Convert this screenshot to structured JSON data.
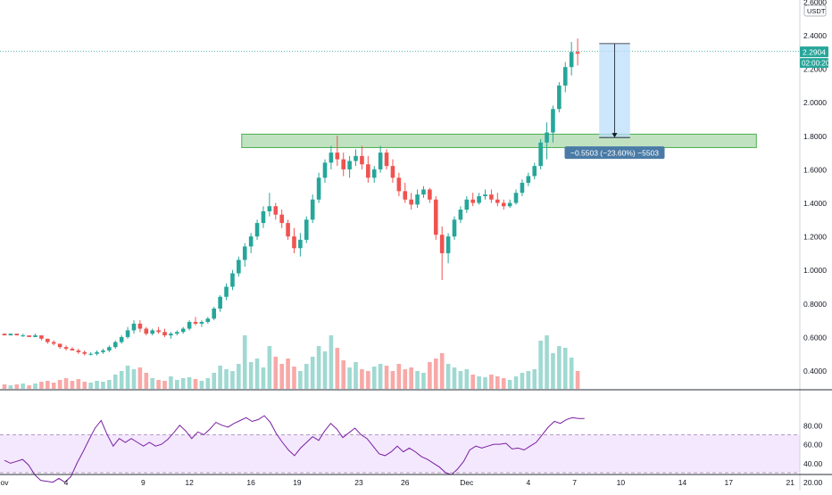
{
  "chart_data": {
    "type": "candlestick",
    "currency": "USDT",
    "x_tick_labels": [
      "ov",
      "4",
      "9",
      "12",
      "16",
      "19",
      "23",
      "26",
      "Dec",
      "4",
      "7",
      "10",
      "14",
      "17",
      "21"
    ],
    "x_tick_days": [
      0,
      4,
      9,
      12,
      16,
      19,
      23,
      26,
      30,
      34,
      37,
      40,
      44,
      47,
      51
    ],
    "price_axis": {
      "min": 0.3,
      "max": 2.6,
      "ticks": [
        "2.6000",
        "2.4000",
        "2.2000",
        "2.0000",
        "1.8000",
        "1.6000",
        "1.4000",
        "1.2000",
        "1.0000",
        "0.8000",
        "0.6000",
        "0.4000"
      ]
    },
    "current_price": "2.2904",
    "countdown": "02:00:20",
    "candles": [
      [
        0.0,
        0.62,
        0.62,
        0.61,
        0.61
      ],
      [
        0.4,
        0.61,
        0.62,
        0.61,
        0.62
      ],
      [
        0.8,
        0.62,
        0.62,
        0.61,
        0.61
      ],
      [
        1.2,
        0.61,
        0.62,
        0.6,
        0.61
      ],
      [
        1.6,
        0.61,
        0.61,
        0.6,
        0.6
      ],
      [
        2.0,
        0.6,
        0.62,
        0.6,
        0.61
      ],
      [
        2.4,
        0.61,
        0.61,
        0.58,
        0.59
      ],
      [
        2.8,
        0.59,
        0.59,
        0.56,
        0.57
      ],
      [
        3.2,
        0.57,
        0.58,
        0.55,
        0.56
      ],
      [
        3.6,
        0.56,
        0.56,
        0.53,
        0.54
      ],
      [
        4.0,
        0.54,
        0.55,
        0.52,
        0.53
      ],
      [
        4.4,
        0.53,
        0.54,
        0.52,
        0.52
      ],
      [
        4.8,
        0.52,
        0.53,
        0.5,
        0.51
      ],
      [
        5.2,
        0.51,
        0.52,
        0.49,
        0.5
      ],
      [
        5.6,
        0.5,
        0.51,
        0.49,
        0.5
      ],
      [
        6.0,
        0.5,
        0.52,
        0.49,
        0.51
      ],
      [
        6.4,
        0.51,
        0.53,
        0.5,
        0.52
      ],
      [
        6.8,
        0.52,
        0.55,
        0.51,
        0.54
      ],
      [
        7.2,
        0.54,
        0.58,
        0.53,
        0.57
      ],
      [
        7.6,
        0.57,
        0.61,
        0.56,
        0.6
      ],
      [
        8.0,
        0.6,
        0.66,
        0.59,
        0.64
      ],
      [
        8.4,
        0.64,
        0.7,
        0.62,
        0.68
      ],
      [
        8.8,
        0.68,
        0.7,
        0.63,
        0.65
      ],
      [
        9.2,
        0.65,
        0.66,
        0.61,
        0.62
      ],
      [
        9.6,
        0.62,
        0.65,
        0.61,
        0.64
      ],
      [
        10.0,
        0.64,
        0.66,
        0.62,
        0.63
      ],
      [
        10.4,
        0.63,
        0.65,
        0.6,
        0.61
      ],
      [
        10.8,
        0.61,
        0.63,
        0.59,
        0.62
      ],
      [
        11.2,
        0.62,
        0.64,
        0.61,
        0.63
      ],
      [
        11.6,
        0.63,
        0.66,
        0.62,
        0.65
      ],
      [
        12.0,
        0.65,
        0.7,
        0.64,
        0.69
      ],
      [
        12.4,
        0.69,
        0.72,
        0.67,
        0.68
      ],
      [
        12.8,
        0.68,
        0.7,
        0.66,
        0.69
      ],
      [
        13.2,
        0.69,
        0.72,
        0.68,
        0.71
      ],
      [
        13.6,
        0.71,
        0.78,
        0.7,
        0.77
      ],
      [
        14.0,
        0.77,
        0.85,
        0.75,
        0.84
      ],
      [
        14.4,
        0.84,
        0.92,
        0.82,
        0.9
      ],
      [
        14.8,
        0.9,
        1.0,
        0.88,
        0.98
      ],
      [
        15.2,
        0.98,
        1.08,
        0.96,
        1.06
      ],
      [
        15.6,
        1.06,
        1.16,
        1.02,
        1.14
      ],
      [
        16.0,
        1.14,
        1.22,
        1.1,
        1.2
      ],
      [
        16.4,
        1.2,
        1.3,
        1.18,
        1.28
      ],
      [
        16.8,
        1.28,
        1.38,
        1.25,
        1.35
      ],
      [
        17.2,
        1.35,
        1.46,
        1.32,
        1.38
      ],
      [
        17.6,
        1.38,
        1.4,
        1.3,
        1.33
      ],
      [
        18.0,
        1.33,
        1.36,
        1.25,
        1.28
      ],
      [
        18.4,
        1.28,
        1.3,
        1.18,
        1.2
      ],
      [
        18.8,
        1.2,
        1.25,
        1.1,
        1.13
      ],
      [
        19.2,
        1.13,
        1.22,
        1.08,
        1.18
      ],
      [
        19.6,
        1.18,
        1.32,
        1.16,
        1.3
      ],
      [
        20.0,
        1.3,
        1.45,
        1.28,
        1.42
      ],
      [
        20.4,
        1.42,
        1.58,
        1.4,
        1.55
      ],
      [
        20.8,
        1.55,
        1.66,
        1.52,
        1.64
      ],
      [
        21.2,
        1.64,
        1.74,
        1.6,
        1.7
      ],
      [
        21.6,
        1.7,
        1.8,
        1.62,
        1.66
      ],
      [
        22.0,
        1.66,
        1.7,
        1.56,
        1.6
      ],
      [
        22.4,
        1.6,
        1.68,
        1.55,
        1.65
      ],
      [
        22.8,
        1.65,
        1.72,
        1.62,
        1.68
      ],
      [
        23.2,
        1.68,
        1.74,
        1.6,
        1.63
      ],
      [
        23.6,
        1.63,
        1.68,
        1.52,
        1.55
      ],
      [
        24.0,
        1.55,
        1.62,
        1.52,
        1.6
      ],
      [
        24.4,
        1.6,
        1.74,
        1.58,
        1.7
      ],
      [
        24.8,
        1.7,
        1.72,
        1.6,
        1.62
      ],
      [
        25.2,
        1.62,
        1.66,
        1.52,
        1.55
      ],
      [
        25.6,
        1.55,
        1.58,
        1.44,
        1.47
      ],
      [
        26.0,
        1.47,
        1.52,
        1.4,
        1.42
      ],
      [
        26.4,
        1.42,
        1.46,
        1.36,
        1.39
      ],
      [
        26.8,
        1.39,
        1.48,
        1.37,
        1.45
      ],
      [
        27.2,
        1.45,
        1.5,
        1.43,
        1.48
      ],
      [
        27.6,
        1.48,
        1.49,
        1.4,
        1.42
      ],
      [
        28.0,
        1.42,
        1.44,
        1.18,
        1.21
      ],
      [
        28.4,
        1.21,
        1.26,
        0.94,
        1.1
      ],
      [
        28.8,
        1.1,
        1.22,
        1.04,
        1.2
      ],
      [
        29.2,
        1.2,
        1.32,
        1.18,
        1.3
      ],
      [
        29.6,
        1.3,
        1.38,
        1.28,
        1.36
      ],
      [
        30.0,
        1.36,
        1.44,
        1.34,
        1.42
      ],
      [
        30.4,
        1.42,
        1.46,
        1.38,
        1.4
      ],
      [
        30.8,
        1.4,
        1.46,
        1.39,
        1.44
      ],
      [
        31.2,
        1.44,
        1.48,
        1.42,
        1.45
      ],
      [
        31.6,
        1.45,
        1.48,
        1.4,
        1.42
      ],
      [
        32.0,
        1.42,
        1.46,
        1.38,
        1.4
      ],
      [
        32.4,
        1.4,
        1.42,
        1.36,
        1.38
      ],
      [
        32.8,
        1.38,
        1.42,
        1.37,
        1.4
      ],
      [
        33.2,
        1.4,
        1.48,
        1.39,
        1.46
      ],
      [
        33.6,
        1.46,
        1.54,
        1.44,
        1.52
      ],
      [
        34.0,
        1.52,
        1.58,
        1.5,
        1.56
      ],
      [
        34.4,
        1.56,
        1.64,
        1.54,
        1.62
      ],
      [
        34.8,
        1.62,
        1.78,
        1.6,
        1.76
      ],
      [
        35.2,
        1.76,
        1.88,
        1.66,
        1.82
      ],
      [
        35.6,
        1.82,
        1.98,
        1.76,
        1.96
      ],
      [
        36.0,
        1.96,
        2.12,
        1.94,
        2.1
      ],
      [
        36.4,
        2.1,
        2.24,
        2.06,
        2.21
      ],
      [
        36.8,
        2.21,
        2.36,
        2.16,
        2.3
      ],
      [
        37.2,
        2.3,
        2.38,
        2.22,
        2.29
      ]
    ],
    "volume": [
      [
        0.0,
        0.05
      ],
      [
        0.4,
        0.04
      ],
      [
        0.8,
        0.05
      ],
      [
        1.2,
        0.06
      ],
      [
        1.6,
        0.04
      ],
      [
        2.0,
        0.06
      ],
      [
        2.4,
        0.08
      ],
      [
        2.8,
        0.09
      ],
      [
        3.2,
        0.07
      ],
      [
        3.6,
        0.1
      ],
      [
        4.0,
        0.12
      ],
      [
        4.4,
        0.09
      ],
      [
        4.8,
        0.11
      ],
      [
        5.2,
        0.08
      ],
      [
        5.6,
        0.07
      ],
      [
        6.0,
        0.09
      ],
      [
        6.4,
        0.08
      ],
      [
        6.8,
        0.1
      ],
      [
        7.2,
        0.16
      ],
      [
        7.6,
        0.2
      ],
      [
        8.0,
        0.26
      ],
      [
        8.4,
        0.22
      ],
      [
        8.8,
        0.24
      ],
      [
        9.2,
        0.18
      ],
      [
        9.6,
        0.12
      ],
      [
        10.0,
        0.1
      ],
      [
        10.4,
        0.09
      ],
      [
        10.8,
        0.14
      ],
      [
        11.2,
        0.1
      ],
      [
        11.6,
        0.12
      ],
      [
        12.0,
        0.13
      ],
      [
        12.4,
        0.11
      ],
      [
        12.8,
        0.09
      ],
      [
        13.2,
        0.12
      ],
      [
        13.6,
        0.18
      ],
      [
        14.0,
        0.26
      ],
      [
        14.4,
        0.22
      ],
      [
        14.8,
        0.2
      ],
      [
        15.2,
        0.28
      ],
      [
        15.6,
        0.6
      ],
      [
        16.0,
        0.3
      ],
      [
        16.4,
        0.34
      ],
      [
        16.8,
        0.24
      ],
      [
        17.2,
        0.48
      ],
      [
        17.6,
        0.36
      ],
      [
        18.0,
        0.28
      ],
      [
        18.4,
        0.34
      ],
      [
        18.8,
        0.25
      ],
      [
        19.2,
        0.2
      ],
      [
        19.6,
        0.28
      ],
      [
        20.0,
        0.36
      ],
      [
        20.4,
        0.48
      ],
      [
        20.8,
        0.42
      ],
      [
        21.2,
        0.6
      ],
      [
        21.6,
        0.46
      ],
      [
        22.0,
        0.32
      ],
      [
        22.4,
        0.24
      ],
      [
        22.8,
        0.3
      ],
      [
        23.2,
        0.22
      ],
      [
        23.6,
        0.2
      ],
      [
        24.0,
        0.25
      ],
      [
        24.4,
        0.28
      ],
      [
        24.8,
        0.26
      ],
      [
        25.2,
        0.2
      ],
      [
        25.6,
        0.28
      ],
      [
        26.0,
        0.22
      ],
      [
        26.4,
        0.24
      ],
      [
        26.8,
        0.2
      ],
      [
        27.2,
        0.18
      ],
      [
        27.6,
        0.3
      ],
      [
        28.0,
        0.34
      ],
      [
        28.4,
        0.4
      ],
      [
        28.8,
        0.28
      ],
      [
        29.2,
        0.24
      ],
      [
        29.6,
        0.2
      ],
      [
        30.0,
        0.22
      ],
      [
        30.4,
        0.16
      ],
      [
        30.8,
        0.14
      ],
      [
        31.2,
        0.13
      ],
      [
        31.6,
        0.16
      ],
      [
        32.0,
        0.14
      ],
      [
        32.4,
        0.12
      ],
      [
        32.8,
        0.1
      ],
      [
        33.2,
        0.14
      ],
      [
        33.6,
        0.18
      ],
      [
        34.0,
        0.2
      ],
      [
        34.4,
        0.22
      ],
      [
        34.8,
        0.54
      ],
      [
        35.2,
        0.6
      ],
      [
        35.6,
        0.4
      ],
      [
        36.0,
        0.48
      ],
      [
        36.4,
        0.46
      ],
      [
        36.8,
        0.35
      ],
      [
        37.2,
        0.2
      ]
    ],
    "rsi": {
      "y_ticks": [
        "80.00",
        "60.00",
        "40.00",
        "20.00"
      ],
      "band": [
        30,
        70
      ],
      "points": [
        [
          0.0,
          43
        ],
        [
          0.6,
          40
        ],
        [
          1.2,
          42
        ],
        [
          1.8,
          44
        ],
        [
          2.4,
          38
        ],
        [
          3.0,
          28
        ],
        [
          3.6,
          22
        ],
        [
          4.2,
          21
        ],
        [
          4.8,
          20
        ],
        [
          5.4,
          24
        ],
        [
          6.0,
          20
        ],
        [
          6.6,
          26
        ],
        [
          7.2,
          40
        ],
        [
          7.8,
          52
        ],
        [
          8.4,
          65
        ],
        [
          9.0,
          77
        ],
        [
          9.6,
          85
        ],
        [
          10.2,
          70
        ],
        [
          10.8,
          58
        ],
        [
          11.4,
          66
        ],
        [
          12.0,
          62
        ],
        [
          12.6,
          66
        ],
        [
          13.2,
          62
        ],
        [
          13.8,
          58
        ],
        [
          14.4,
          62
        ],
        [
          15.0,
          58
        ],
        [
          15.6,
          60
        ],
        [
          16.2,
          65
        ],
        [
          16.8,
          72
        ],
        [
          17.4,
          80
        ],
        [
          18.0,
          74
        ],
        [
          18.6,
          66
        ],
        [
          19.2,
          73
        ],
        [
          19.8,
          70
        ],
        [
          20.4,
          76
        ],
        [
          21.0,
          83
        ],
        [
          21.6,
          80
        ],
        [
          22.2,
          78
        ],
        [
          22.8,
          82
        ],
        [
          23.4,
          85
        ],
        [
          24.0,
          88
        ],
        [
          24.6,
          84
        ],
        [
          25.2,
          86
        ],
        [
          25.8,
          90
        ],
        [
          26.4,
          83
        ],
        [
          27.0,
          71
        ],
        [
          27.6,
          62
        ],
        [
          28.2,
          54
        ],
        [
          28.8,
          48
        ],
        [
          29.4,
          56
        ],
        [
          30.0,
          62
        ],
        [
          30.6,
          68
        ],
        [
          31.2,
          64
        ],
        [
          31.8,
          74
        ],
        [
          32.4,
          82
        ],
        [
          33.0,
          76
        ],
        [
          33.6,
          67
        ],
        [
          34.2,
          72
        ],
        [
          34.8,
          77
        ],
        [
          35.4,
          70
        ],
        [
          36.0,
          66
        ],
        [
          36.6,
          58
        ],
        [
          37.2,
          50
        ],
        [
          37.8,
          48
        ],
        [
          38.4,
          52
        ],
        [
          39.0,
          58
        ],
        [
          39.6,
          52
        ],
        [
          40.2,
          56
        ],
        [
          40.8,
          52
        ],
        [
          41.4,
          47
        ],
        [
          42.0,
          44
        ],
        [
          42.6,
          40
        ],
        [
          43.2,
          36
        ],
        [
          43.8,
          30
        ],
        [
          44.4,
          28
        ],
        [
          45.0,
          34
        ],
        [
          45.6,
          42
        ],
        [
          46.2,
          54
        ],
        [
          46.8,
          58
        ],
        [
          47.4,
          56
        ],
        [
          48.0,
          58
        ],
        [
          48.6,
          60
        ],
        [
          49.2,
          60
        ],
        [
          49.8,
          61
        ],
        [
          50.4,
          55
        ],
        [
          51.0,
          56
        ],
        [
          51.6,
          54
        ],
        [
          52.2,
          58
        ],
        [
          52.8,
          62
        ],
        [
          53.4,
          70
        ],
        [
          54.0,
          78
        ],
        [
          54.6,
          84
        ],
        [
          55.2,
          82
        ],
        [
          55.8,
          86
        ],
        [
          56.4,
          88
        ],
        [
          57.0,
          87
        ],
        [
          57.6,
          87
        ]
      ]
    },
    "annotations": {
      "zone": {
        "x_start": 15.4,
        "x_end": 48.8,
        "y_low": 1.73,
        "y_high": 1.81
      },
      "measure": {
        "x_start": 38.6,
        "x_end": 40.6,
        "y_from": 2.35,
        "y_to": 1.79,
        "label": "−0.5503 (−23.60%) −5503"
      }
    }
  }
}
